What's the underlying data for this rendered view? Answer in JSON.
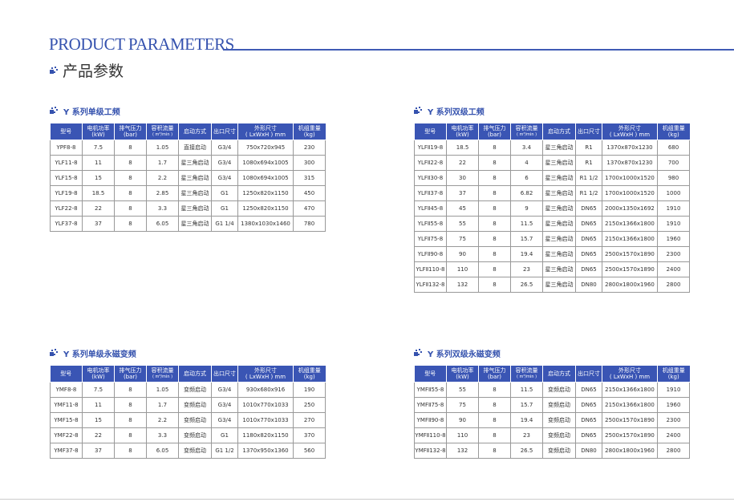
{
  "header": {
    "title_en": "PRODUCT PARAMETERS",
    "title_cn": "产品参数"
  },
  "colors": {
    "accent": "#3552ae",
    "table_header": "#3a55b4"
  },
  "columns": [
    {
      "label": "型号",
      "unit": ""
    },
    {
      "label": "电机功率",
      "unit": "(kW)"
    },
    {
      "label": "排气压力",
      "unit": "(bar)"
    },
    {
      "label": "容积流量",
      "unit": "( m³/min )"
    },
    {
      "label": "启动方式",
      "unit": ""
    },
    {
      "label": "出口尺寸",
      "unit": ""
    },
    {
      "label": "外形尺寸",
      "unit": "( LxWxH ) mm"
    },
    {
      "label": "机组重量",
      "unit": "(kg)"
    }
  ],
  "tables": [
    {
      "title": "Y 系列单级工频",
      "rows": [
        [
          "YPF8-8",
          "7.5",
          "8",
          "1.05",
          "直接启动",
          "G3/4",
          "750x720x945",
          "230"
        ],
        [
          "YLF11-8",
          "11",
          "8",
          "1.7",
          "星三角启动",
          "G3/4",
          "1080x694x1005",
          "300"
        ],
        [
          "YLF15-8",
          "15",
          "8",
          "2.2",
          "星三角启动",
          "G3/4",
          "1080x694x1005",
          "315"
        ],
        [
          "YLF19-8",
          "18.5",
          "8",
          "2.85",
          "星三角启动",
          "G1",
          "1250x820x1150",
          "450"
        ],
        [
          "YLF22-8",
          "22",
          "8",
          "3.3",
          "星三角启动",
          "G1",
          "1250x820x1150",
          "470"
        ],
        [
          "YLF37-8",
          "37",
          "8",
          "6.05",
          "星三角启动",
          "G1 1/4",
          "1380x1030x1460",
          "780"
        ]
      ]
    },
    {
      "title": "Y 系列双级工频",
      "rows": [
        [
          "YLFⅡ19-8",
          "18.5",
          "8",
          "3.4",
          "星三角启动",
          "R1",
          "1370x870x1230",
          "680"
        ],
        [
          "YLFⅡ22-8",
          "22",
          "8",
          "4",
          "星三角启动",
          "R1",
          "1370x870x1230",
          "700"
        ],
        [
          "YLFⅡ30-8",
          "30",
          "8",
          "6",
          "星三角启动",
          "R1 1/2",
          "1700x1000x1520",
          "980"
        ],
        [
          "YLFⅡ37-8",
          "37",
          "8",
          "6.82",
          "星三角启动",
          "R1 1/2",
          "1700x1000x1520",
          "1000"
        ],
        [
          "YLFⅡ45-8",
          "45",
          "8",
          "9",
          "星三角启动",
          "DN65",
          "2000x1350x1692",
          "1910"
        ],
        [
          "YLFⅡ55-8",
          "55",
          "8",
          "11.5",
          "星三角启动",
          "DN65",
          "2150x1366x1800",
          "1910"
        ],
        [
          "YLFⅡ75-8",
          "75",
          "8",
          "15.7",
          "星三角启动",
          "DN65",
          "2150x1366x1800",
          "1960"
        ],
        [
          "YLFⅡ90-8",
          "90",
          "8",
          "19.4",
          "星三角启动",
          "DN65",
          "2500x1570x1890",
          "2300"
        ],
        [
          "YLFⅡ110-8",
          "110",
          "8",
          "23",
          "星三角启动",
          "DN65",
          "2500x1570x1890",
          "2400"
        ],
        [
          "YLFⅡ132-8",
          "132",
          "8",
          "26.5",
          "星三角启动",
          "DN80",
          "2800x1800x1960",
          "2800"
        ]
      ]
    },
    {
      "title": "Y 系列单级永磁变频",
      "rows": [
        [
          "YMF8-8",
          "7.5",
          "8",
          "1.05",
          "变频启动",
          "G3/4",
          "930x680x916",
          "190"
        ],
        [
          "YMF11-8",
          "11",
          "8",
          "1.7",
          "变频启动",
          "G3/4",
          "1010x770x1033",
          "250"
        ],
        [
          "YMF15-8",
          "15",
          "8",
          "2.2",
          "变频启动",
          "G3/4",
          "1010x770x1033",
          "270"
        ],
        [
          "YMF22-8",
          "22",
          "8",
          "3.3",
          "变频启动",
          "G1",
          "1180x820x1150",
          "370"
        ],
        [
          "YMF37-8",
          "37",
          "8",
          "6.05",
          "变频启动",
          "G1 1/2",
          "1370x950x1360",
          "560"
        ]
      ]
    },
    {
      "title": "Y 系列双级永磁变频",
      "rows": [
        [
          "YMFⅡ55-8",
          "55",
          "8",
          "11.5",
          "变频启动",
          "DN65",
          "2150x1366x1800",
          "1910"
        ],
        [
          "YMFⅡ75-8",
          "75",
          "8",
          "15.7",
          "变频启动",
          "DN65",
          "2150x1366x1800",
          "1960"
        ],
        [
          "YMFⅡ90-8",
          "90",
          "8",
          "19.4",
          "变频启动",
          "DN65",
          "2500x1570x1890",
          "2300"
        ],
        [
          "YMFⅡ110-8",
          "110",
          "8",
          "23",
          "变频启动",
          "DN65",
          "2500x1570x1890",
          "2400"
        ],
        [
          "YMFⅡ132-8",
          "132",
          "8",
          "26.5",
          "变频启动",
          "DN80",
          "2800x1800x1960",
          "2800"
        ]
      ]
    }
  ]
}
